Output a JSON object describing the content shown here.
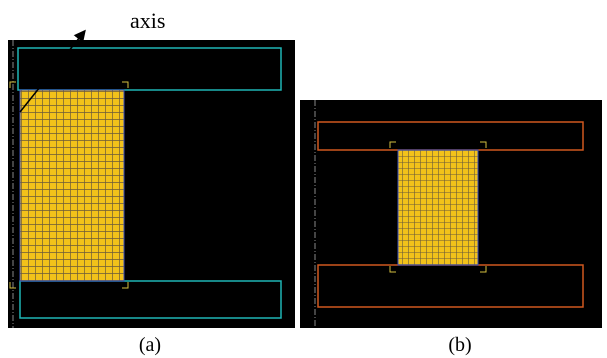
{
  "annotation": "axis",
  "panels": [
    {
      "label": "(a)"
    },
    {
      "label": "(b)"
    }
  ]
}
